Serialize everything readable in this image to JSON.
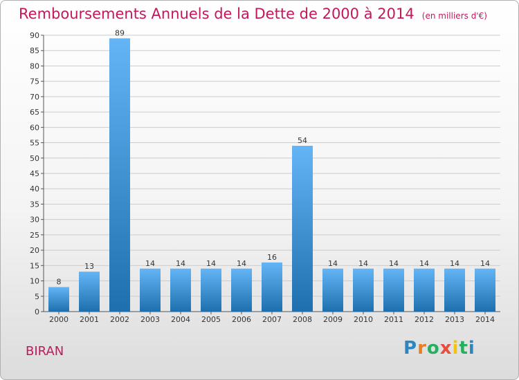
{
  "header": {
    "title": "Remboursements Annuels de la Dette de 2000 à 2014",
    "unit": "(en milliers d'€)"
  },
  "footer": {
    "commune": "BIRAN",
    "logo_letters": [
      {
        "ch": "P",
        "color": "#2e86c1"
      },
      {
        "ch": "r",
        "color": "#e67e22"
      },
      {
        "ch": "o",
        "color": "#27ae60"
      },
      {
        "ch": "x",
        "color": "#e74c3c"
      },
      {
        "ch": "i",
        "color": "#f1c40f"
      },
      {
        "ch": "t",
        "color": "#27ae60"
      },
      {
        "ch": "i",
        "color": "#2e86c1"
      }
    ]
  },
  "colors": {
    "bar_top": "#64b5f6",
    "bar_bottom": "#1e6fad",
    "title": "#c2185b",
    "grid": "#cccccc"
  },
  "chart_data": {
    "type": "bar",
    "title": "Remboursements Annuels de la Dette de 2000 à 2014",
    "subtitle": "(en milliers d'€)",
    "xlabel": "",
    "ylabel": "",
    "categories": [
      "2000",
      "2001",
      "2002",
      "2003",
      "2004",
      "2005",
      "2006",
      "2007",
      "2008",
      "2009",
      "2010",
      "2011",
      "2012",
      "2013",
      "2014"
    ],
    "values": [
      8,
      13,
      89,
      14,
      14,
      14,
      14,
      16,
      54,
      14,
      14,
      14,
      14,
      14,
      14
    ],
    "ylim": [
      0,
      90
    ],
    "yticks": [
      0,
      5,
      10,
      15,
      20,
      25,
      30,
      35,
      40,
      45,
      50,
      55,
      60,
      65,
      70,
      75,
      80,
      85,
      90
    ],
    "grid": "horizontal",
    "data_labels": true
  }
}
